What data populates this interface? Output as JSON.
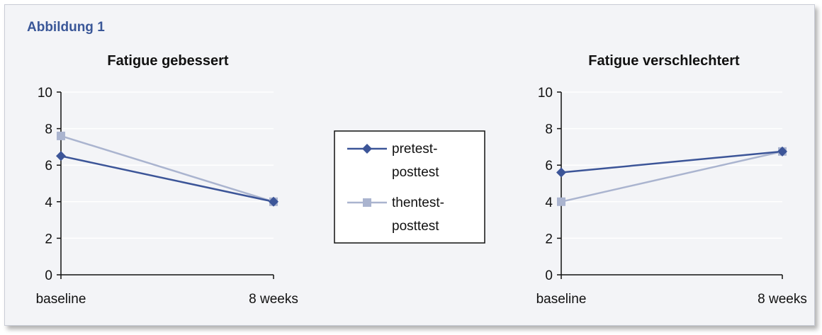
{
  "figure": {
    "label": "Abbildung 1"
  },
  "colors": {
    "series_pretest": "#3c5598",
    "series_thentest": "#aab4cf",
    "grid": "#ffffff",
    "axis": "#111111"
  },
  "legend": {
    "placement": "center",
    "entries": [
      {
        "lines": [
          "pretest-",
          "posttest"
        ],
        "marker": "diamond"
      },
      {
        "lines": [
          "thentest-",
          "posttest"
        ],
        "marker": "square"
      }
    ]
  },
  "chart_data": [
    {
      "type": "line",
      "title": "Fatigue gebessert",
      "categories": [
        "baseline",
        "8 weeks"
      ],
      "ylim": [
        0,
        10
      ],
      "yticks": [
        "0",
        "2",
        "4",
        "6",
        "8",
        "10"
      ],
      "grid": true,
      "series": [
        {
          "name": "pretest-posttest",
          "values": [
            6.5,
            4.0
          ]
        },
        {
          "name": "thentest-posttest",
          "values": [
            7.6,
            4.0
          ]
        }
      ]
    },
    {
      "type": "line",
      "title": "Fatigue verschlechtert",
      "categories": [
        "baseline",
        "8 weeks"
      ],
      "ylim": [
        0,
        10
      ],
      "yticks": [
        "0",
        "2",
        "4",
        "6",
        "8",
        "10"
      ],
      "grid": true,
      "series": [
        {
          "name": "pretest-posttest",
          "values": [
            5.6,
            6.75
          ]
        },
        {
          "name": "thentest-posttest",
          "values": [
            4.0,
            6.75
          ]
        }
      ]
    }
  ]
}
